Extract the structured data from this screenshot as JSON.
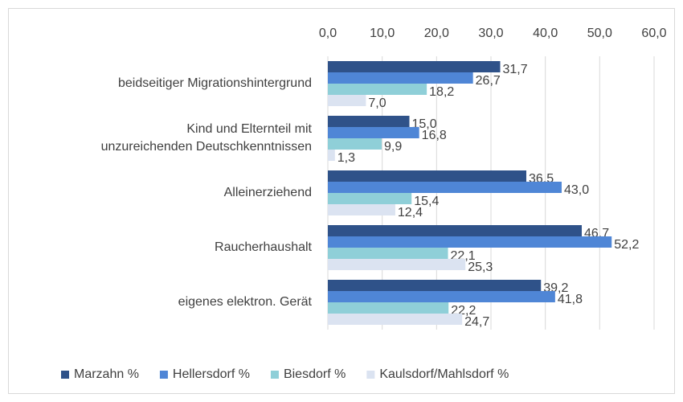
{
  "chart_data": {
    "type": "bar",
    "orientation": "horizontal",
    "categories": [
      "beidseitiger Migrationshintergrund",
      "Kind und Elternteil mit\nunzureichenden Deutschkenntnissen",
      "Alleinerziehend",
      "Raucherhaushalt",
      "eigenes elektron. Gerät"
    ],
    "series": [
      {
        "name": "Marzahn %",
        "color": "#2f5289",
        "values": [
          31.7,
          15.0,
          36.5,
          46.7,
          39.2
        ],
        "value_labels": [
          "31,7",
          "15,0",
          "36,5",
          "46,7",
          "39,2"
        ]
      },
      {
        "name": "Hellersdorf %",
        "color": "#4f86d6",
        "values": [
          26.7,
          16.8,
          43.0,
          52.2,
          41.8
        ],
        "value_labels": [
          "26,7",
          "16,8",
          "43,0",
          "52,2",
          "41,8"
        ]
      },
      {
        "name": "Biesdorf %",
        "color": "#8fcfd8",
        "values": [
          18.2,
          9.9,
          15.4,
          22.1,
          22.2
        ],
        "value_labels": [
          "18,2",
          "9,9",
          "15,4",
          "22,1",
          "22,2"
        ]
      },
      {
        "name": "Kaulsdorf/Mahlsdorf %",
        "color": "#dbe3f1",
        "values": [
          7.0,
          1.3,
          12.4,
          25.3,
          24.7
        ],
        "value_labels": [
          "7,0",
          "1,3",
          "12,4",
          "25,3",
          "24,7"
        ]
      }
    ],
    "xlim": [
      0,
      60
    ],
    "xticks": [
      {
        "value": 0,
        "label": "0,0"
      },
      {
        "value": 10,
        "label": "10,0"
      },
      {
        "value": 20,
        "label": "20,0"
      },
      {
        "value": 30,
        "label": "30,0"
      },
      {
        "value": 40,
        "label": "40,0"
      },
      {
        "value": 50,
        "label": "50,0"
      },
      {
        "value": 60,
        "label": "60,0"
      }
    ],
    "grid": true,
    "legend": "bottom"
  }
}
